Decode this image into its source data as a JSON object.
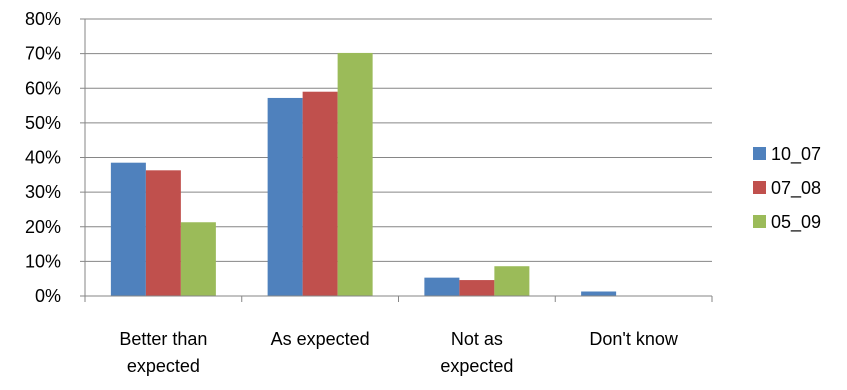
{
  "chart_data": {
    "type": "bar",
    "title": "",
    "xlabel": "",
    "ylabel": "",
    "ylim": [
      0,
      80
    ],
    "y_ticks": [
      0,
      10,
      20,
      30,
      40,
      50,
      60,
      70,
      80
    ],
    "y_tick_format": "percent",
    "grid": "horizontal",
    "legend_position": "right",
    "categories": [
      [
        "Better than",
        "expected"
      ],
      [
        "As expected"
      ],
      [
        "Not as",
        "expected"
      ],
      [
        "Don't know"
      ]
    ],
    "series": [
      {
        "name": "10_07",
        "color": "#4F81BD",
        "values": [
          38.5,
          57.2,
          5.3,
          1.3
        ]
      },
      {
        "name": "07_08",
        "color": "#C0504D",
        "values": [
          36.3,
          59.0,
          4.6,
          0
        ]
      },
      {
        "name": "05_09",
        "color": "#9BBB59",
        "values": [
          21.3,
          70.2,
          8.6,
          0
        ]
      }
    ]
  }
}
